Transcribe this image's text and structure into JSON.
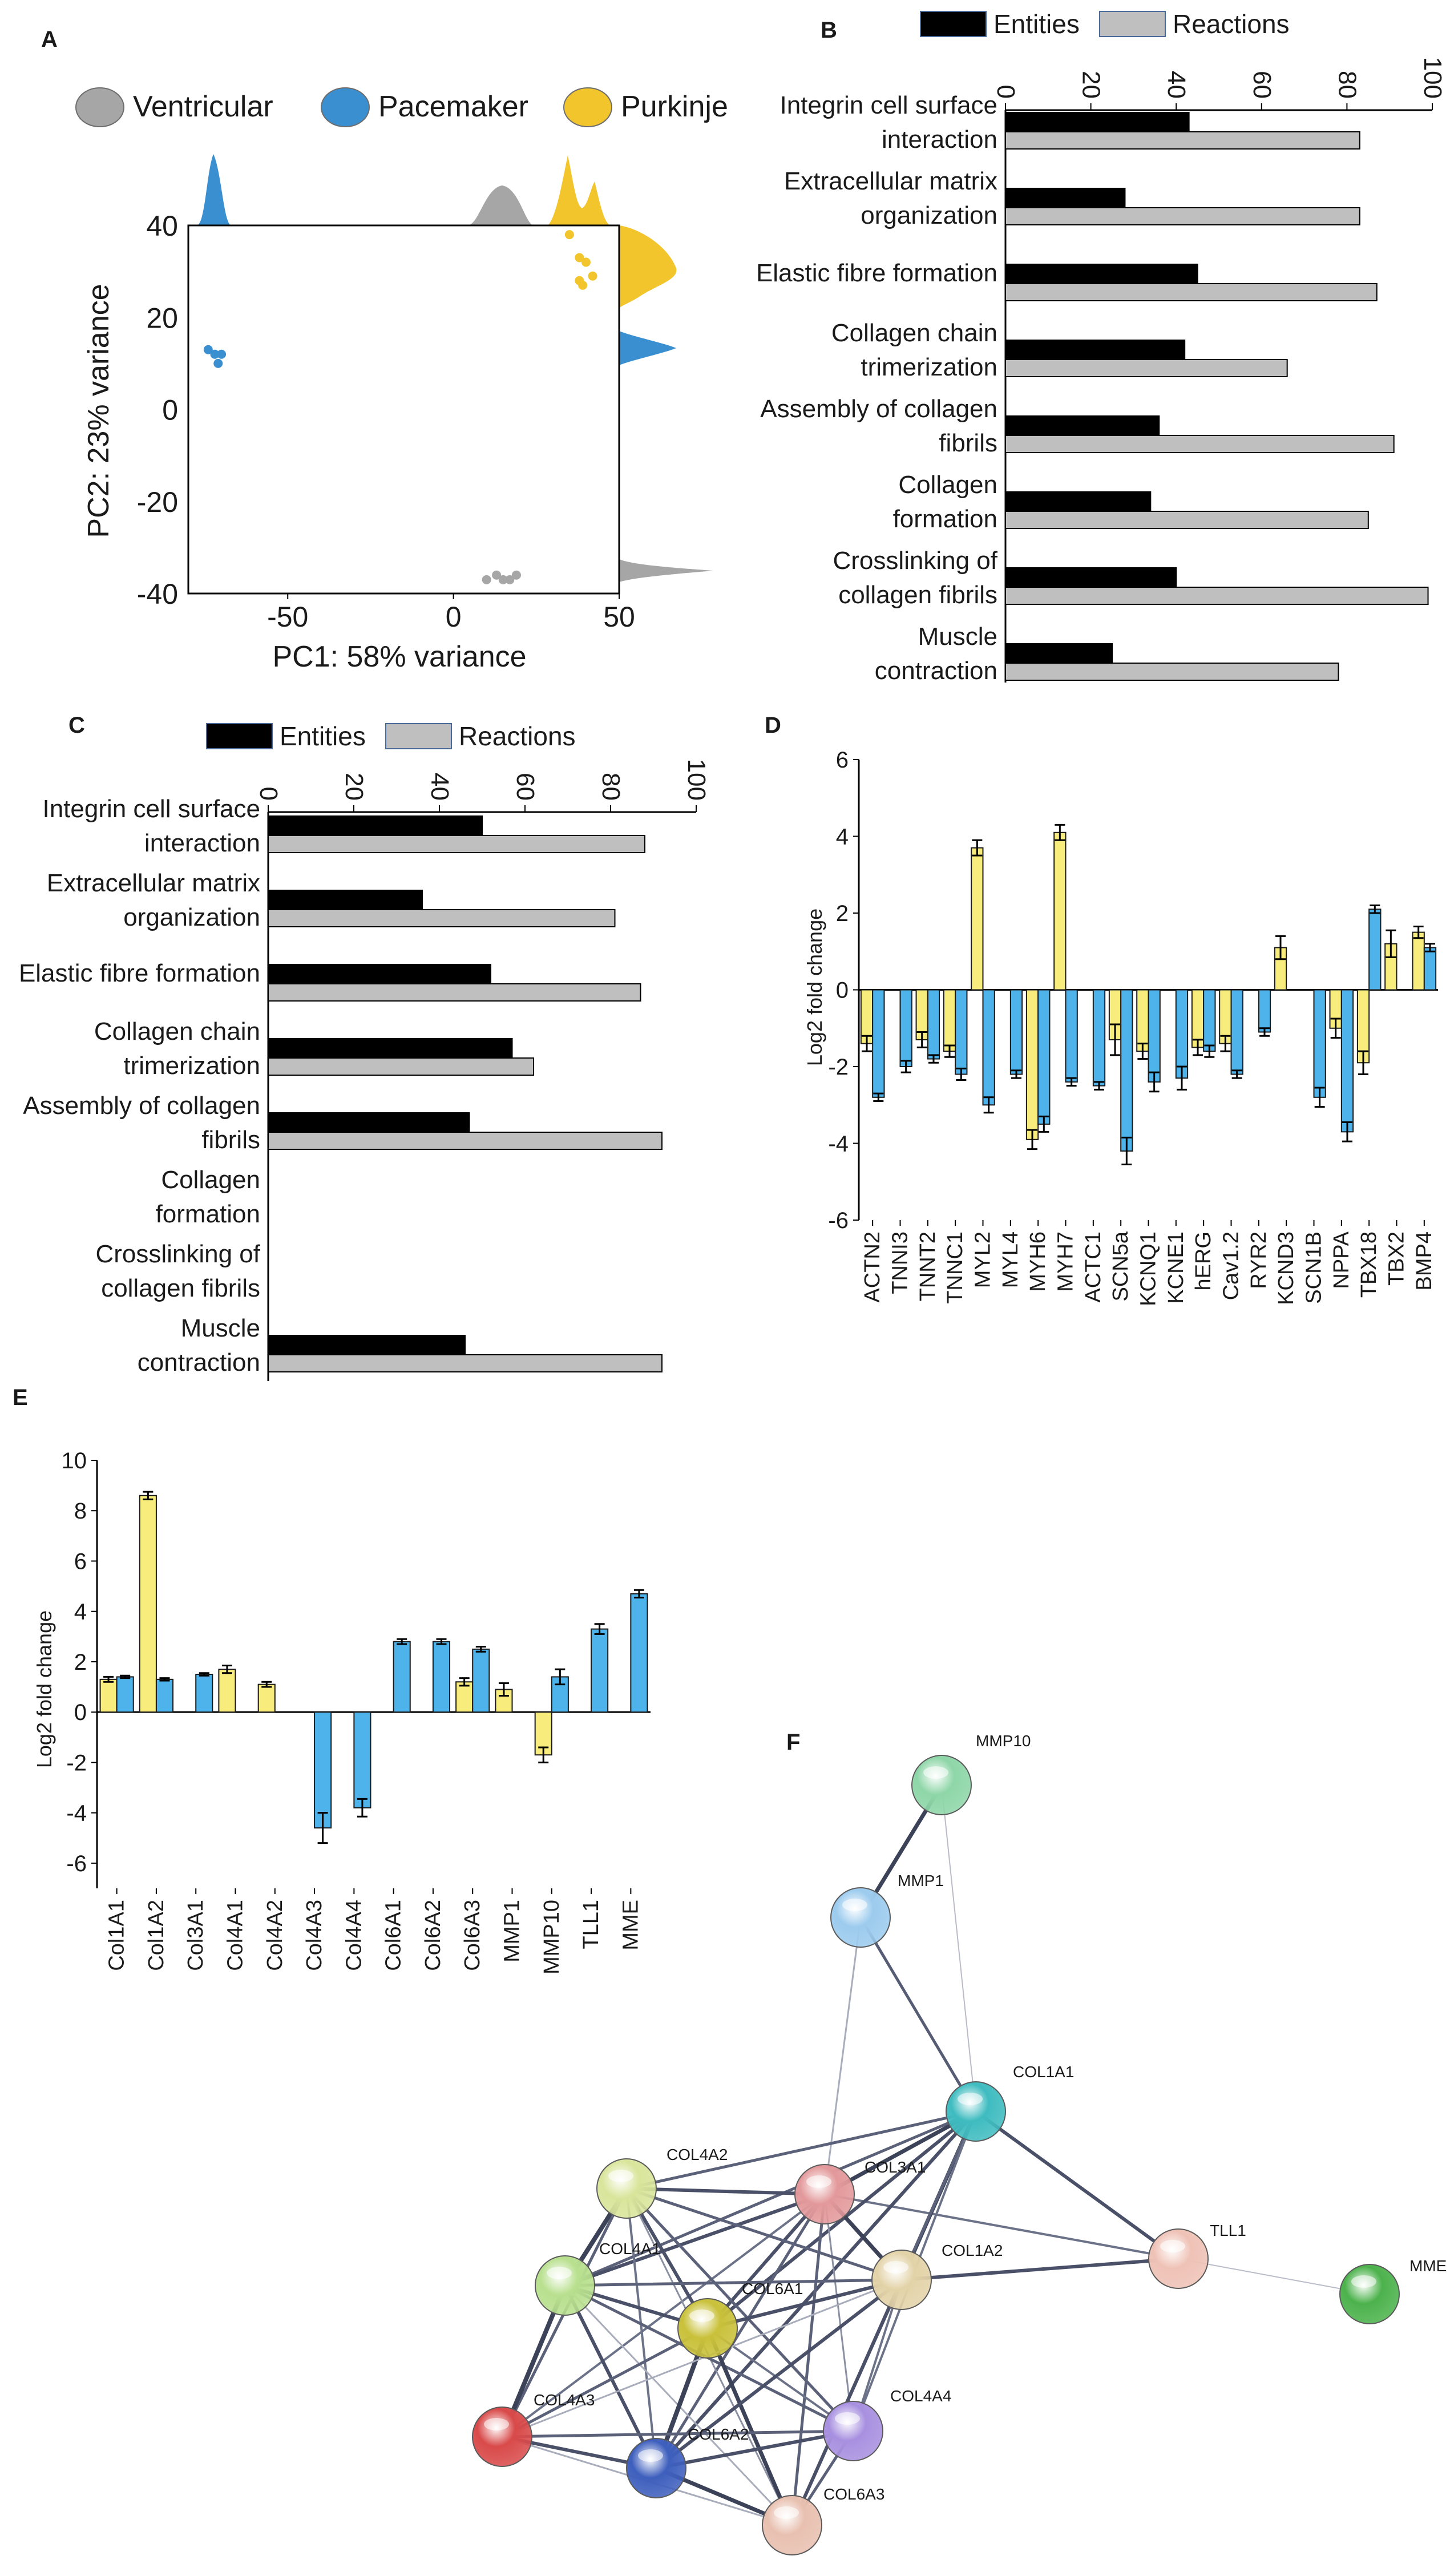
{
  "colors": {
    "ventricular": "#a6a6a6",
    "pacemaker": "#3a8fd1",
    "purkinje": "#f2c52d",
    "entities": "#000000",
    "reactions": "#bfbfbf",
    "fc_yellow": "#f7ec7c",
    "fc_blue": "#4db3ea"
  },
  "chart_data": [
    {
      "panel": "A",
      "type": "scatter",
      "xlabel": "PC1: 58% variance",
      "ylabel": "PC2: 23% variance",
      "xlim": [
        -80,
        50
      ],
      "ylim": [
        -40,
        40
      ],
      "xticks": [
        "-50",
        "0",
        "50"
      ],
      "yticks": [
        "40",
        "20",
        "0",
        "-20",
        "-40"
      ],
      "legend": [
        "Ventricular",
        "Pacemaker",
        "Purkinje"
      ],
      "series": [
        {
          "name": "Pacemaker",
          "points": [
            [
              -74,
              13
            ],
            [
              -71,
              10
            ],
            [
              -70,
              12
            ],
            [
              -72,
              12
            ]
          ]
        },
        {
          "name": "Purkinje",
          "points": [
            [
              35,
              38
            ],
            [
              38,
              33
            ],
            [
              40,
              32
            ],
            [
              42,
              29
            ],
            [
              38,
              28
            ],
            [
              39,
              27
            ]
          ]
        },
        {
          "name": "Ventricular",
          "points": [
            [
              10,
              -37
            ],
            [
              13,
              -36
            ],
            [
              15,
              -37
            ],
            [
              17,
              -37
            ],
            [
              19,
              -36
            ]
          ]
        }
      ]
    },
    {
      "panel": "B",
      "type": "bar",
      "legend": [
        "Entities",
        "Reactions"
      ],
      "xlim": [
        0,
        100
      ],
      "xticks": [
        "0",
        "20",
        "40",
        "60",
        "80",
        "100"
      ],
      "categories": [
        [
          "Integrin cell surface",
          "interaction"
        ],
        [
          "Extracellular matrix",
          "organization"
        ],
        [
          "Elastic fibre formation"
        ],
        [
          "Collagen chain",
          "trimerization"
        ],
        [
          "Assembly of collagen",
          "fibrils"
        ],
        [
          "Collagen",
          "formation"
        ],
        [
          "Crosslinking of",
          "collagen fibrils"
        ],
        [
          "Muscle",
          "contraction"
        ]
      ],
      "series": [
        {
          "name": "Entities",
          "values": [
            43,
            28,
            45,
            42,
            36,
            34,
            40,
            25
          ]
        },
        {
          "name": "Reactions",
          "values": [
            83,
            83,
            87,
            66,
            91,
            85,
            99,
            78
          ]
        }
      ]
    },
    {
      "panel": "C",
      "type": "bar",
      "legend": [
        "Entities",
        "Reactions"
      ],
      "xlim": [
        0,
        100
      ],
      "xticks": [
        "0",
        "20",
        "40",
        "60",
        "80",
        "100"
      ],
      "categories": [
        [
          "Integrin cell surface",
          "interaction"
        ],
        [
          "Extracellular matrix",
          "organization"
        ],
        [
          "Elastic fibre formation"
        ],
        [
          "Collagen chain",
          "trimerization"
        ],
        [
          "Assembly of collagen",
          "fibrils"
        ],
        [
          "Collagen",
          "formation"
        ],
        [
          "Crosslinking of",
          "collagen fibrils"
        ],
        [
          "Muscle",
          "contraction"
        ]
      ],
      "series": [
        {
          "name": "Entities",
          "values": [
            50,
            36,
            52,
            57,
            47,
            null,
            null,
            46
          ]
        },
        {
          "name": "Reactions",
          "values": [
            88,
            81,
            87,
            62,
            92,
            null,
            null,
            92
          ]
        }
      ]
    },
    {
      "panel": "D",
      "type": "bar",
      "ylabel": "Log2 fold change",
      "ylim": [
        -6,
        6
      ],
      "yticks": [
        "6",
        "4",
        "2",
        "0",
        "-2",
        "-4",
        "-6"
      ],
      "categories": [
        "ACTN2",
        "TNNI3",
        "TNNT2",
        "TNNC1",
        "MYL2",
        "MYL4",
        "MYH6",
        "MYH7",
        "ACTC1",
        "SCN5a",
        "KCNQ1",
        "KCNE1",
        "hERG",
        "Cav1.2",
        "RYR2",
        "KCND3",
        "SCN1B",
        "NPPA",
        "TBX18",
        "TBX2",
        "BMP4"
      ],
      "series": [
        {
          "name": "yellow",
          "values": [
            -1.4,
            null,
            -1.3,
            -1.6,
            3.7,
            null,
            -3.9,
            4.1,
            null,
            -1.3,
            -1.6,
            null,
            -1.5,
            -1.4,
            null,
            1.1,
            null,
            -1.0,
            -1.9,
            1.2,
            1.5
          ],
          "errors": [
            0.2,
            null,
            0.2,
            0.15,
            0.2,
            null,
            0.25,
            0.2,
            null,
            0.4,
            0.2,
            null,
            0.2,
            0.2,
            null,
            0.3,
            null,
            0.25,
            0.3,
            0.35,
            0.15
          ]
        },
        {
          "name": "blue",
          "values": [
            -2.8,
            -2.0,
            -1.8,
            -2.2,
            -3.0,
            -2.2,
            -3.5,
            -2.4,
            -2.5,
            -4.2,
            -2.4,
            -2.3,
            -1.6,
            -2.2,
            -1.1,
            null,
            -2.8,
            -3.7,
            2.1,
            null,
            1.1
          ],
          "errors": [
            0.1,
            0.15,
            0.1,
            0.15,
            0.2,
            0.1,
            0.2,
            0.1,
            0.1,
            0.35,
            0.25,
            0.3,
            0.15,
            0.1,
            0.1,
            null,
            0.25,
            0.25,
            0.1,
            null,
            0.1
          ]
        }
      ]
    },
    {
      "panel": "E",
      "type": "bar",
      "ylabel": "Log2 fold change",
      "ylim": [
        -7,
        10
      ],
      "yticks": [
        "10",
        "8",
        "6",
        "4",
        "2",
        "0",
        "-2",
        "-4",
        "-6"
      ],
      "categories": [
        "Col1A1",
        "Col1A2",
        "Col3A1",
        "Col4A1",
        "Col4A2",
        "Col4A3",
        "Col4A4",
        "Col6A1",
        "Col6A2",
        "Col6A3",
        "MMP1",
        "MMP10",
        "TLL1",
        "MME"
      ],
      "series": [
        {
          "name": "yellow",
          "values": [
            1.3,
            8.6,
            null,
            1.7,
            1.1,
            null,
            null,
            null,
            null,
            1.2,
            0.9,
            -1.7,
            null,
            null
          ],
          "errors": [
            0.1,
            0.15,
            null,
            0.15,
            0.1,
            null,
            null,
            null,
            null,
            0.15,
            0.25,
            0.3,
            null,
            null
          ]
        },
        {
          "name": "blue",
          "values": [
            1.4,
            1.3,
            1.5,
            null,
            null,
            -4.6,
            -3.8,
            2.8,
            2.8,
            2.5,
            null,
            1.4,
            3.3,
            4.7
          ],
          "errors": [
            0.05,
            0.05,
            0.05,
            null,
            null,
            0.6,
            0.35,
            0.1,
            0.1,
            0.1,
            null,
            0.3,
            0.2,
            0.15
          ]
        }
      ]
    }
  ],
  "panels": {
    "a": "A",
    "b": "B",
    "c": "C",
    "d": "D",
    "e": "E",
    "f": "F"
  },
  "network": {
    "nodes": [
      {
        "name": "MMP10",
        "color": "#8ed6a8"
      },
      {
        "name": "MMP1",
        "color": "#9ccbee"
      },
      {
        "name": "COL1A1",
        "color": "#3fbcc0"
      },
      {
        "name": "COL4A2",
        "color": "#d9e59b"
      },
      {
        "name": "COL3A1",
        "color": "#e3999b"
      },
      {
        "name": "COL1A2",
        "color": "#e3d3a8"
      },
      {
        "name": "TLL1",
        "color": "#efc2b6"
      },
      {
        "name": "MME",
        "color": "#4cb24c"
      },
      {
        "name": "COL4A1",
        "color": "#b8e08e"
      },
      {
        "name": "COL6A1",
        "color": "#c9c13a"
      },
      {
        "name": "COL4A3",
        "color": "#d94a4a"
      },
      {
        "name": "COL6A2",
        "color": "#3e5fbd"
      },
      {
        "name": "COL4A4",
        "color": "#a890e0"
      },
      {
        "name": "COL6A3",
        "color": "#e8c0b0"
      }
    ]
  }
}
